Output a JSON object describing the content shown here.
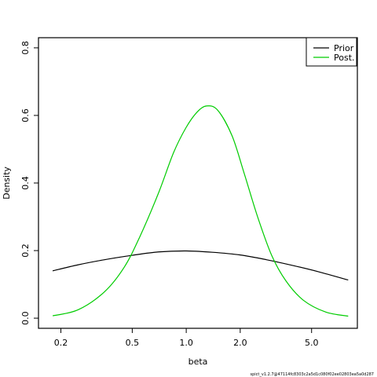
{
  "chart_data": {
    "type": "line",
    "xlabel": "beta",
    "ylabel": "Density",
    "x_scale": "log",
    "xlim": [
      0.15,
      9
    ],
    "ylim": [
      -0.03,
      0.83
    ],
    "x_ticks": [
      0.2,
      0.5,
      1.0,
      2.0,
      5.0
    ],
    "x_tick_labels": [
      "0.2",
      "0.5",
      "1.0",
      "2.0",
      "5.0"
    ],
    "y_ticks": [
      0.0,
      0.2,
      0.4,
      0.6,
      0.8
    ],
    "y_tick_labels": [
      "0.0",
      "0.2",
      "0.4",
      "0.6",
      "0.8"
    ],
    "grid": false,
    "legend_position": "top-right",
    "series": [
      {
        "name": "Prior",
        "color": "#000000",
        "x": [
          0.18,
          0.25,
          0.35,
          0.5,
          0.7,
          1.0,
          1.4,
          2.0,
          2.8,
          4.0,
          5.5,
          8.0
        ],
        "values": [
          0.14,
          0.158,
          0.173,
          0.186,
          0.196,
          0.199,
          0.195,
          0.187,
          0.173,
          0.155,
          0.137,
          0.113
        ]
      },
      {
        "name": "Post.",
        "color": "#00cc00",
        "x": [
          0.18,
          0.25,
          0.35,
          0.45,
          0.55,
          0.7,
          0.85,
          1.0,
          1.15,
          1.3,
          1.5,
          1.8,
          2.1,
          2.5,
          3.0,
          3.6,
          4.5,
          6.0,
          8.0
        ],
        "values": [
          0.007,
          0.025,
          0.078,
          0.15,
          0.24,
          0.37,
          0.49,
          0.565,
          0.61,
          0.628,
          0.615,
          0.54,
          0.43,
          0.3,
          0.185,
          0.11,
          0.053,
          0.018,
          0.006
        ]
      }
    ],
    "footer": "spict_v1.2.7@47114fc8303c2a5d1c080f02ee02803ea5a0d287"
  }
}
